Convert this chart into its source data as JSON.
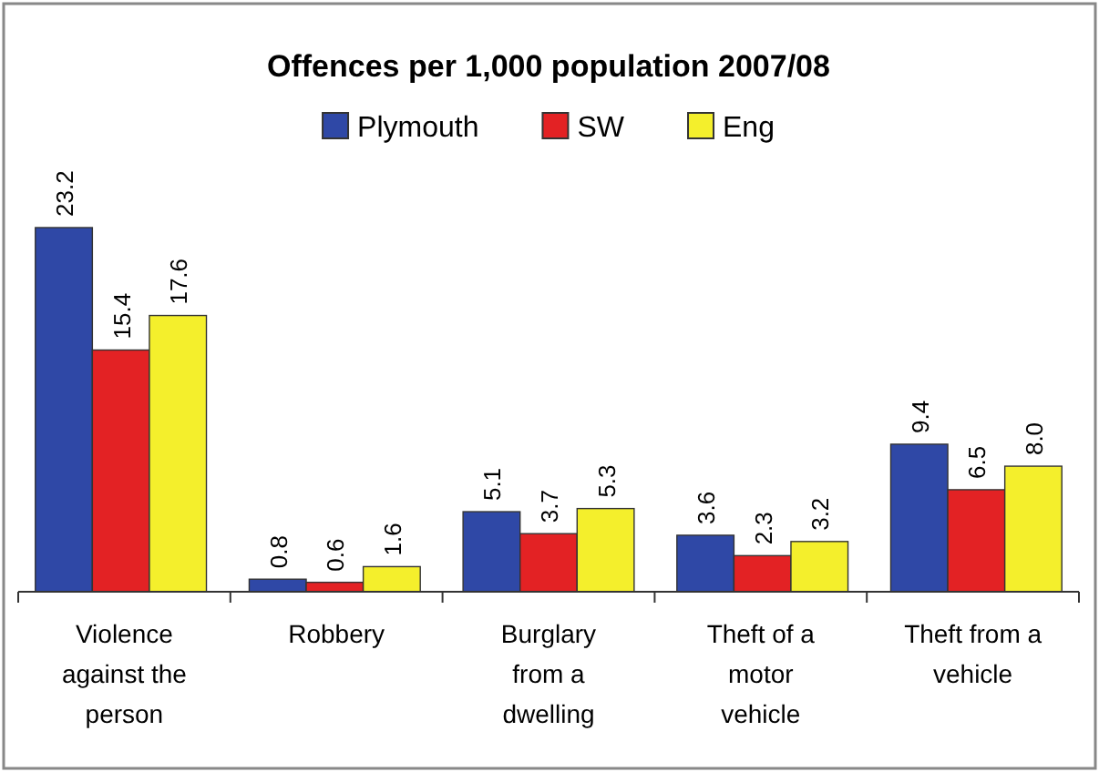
{
  "chart_data": {
    "type": "bar",
    "title": "Offences per 1,000 population 2007/08",
    "categories": [
      "Violence against the person",
      "Robbery",
      "Burglary from a dwelling",
      "Theft of a motor vehicle",
      "Theft from a vehicle"
    ],
    "series": [
      {
        "name": "Plymouth",
        "color": "#2f48a6",
        "values": [
          23.2,
          0.8,
          5.1,
          3.6,
          9.4
        ],
        "value_labels": [
          "23.2",
          "0.8",
          "5.1",
          "3.6",
          "9.4"
        ]
      },
      {
        "name": "SW",
        "color": "#e32224",
        "values": [
          15.4,
          0.6,
          3.7,
          2.3,
          6.5
        ],
        "value_labels": [
          "15.4",
          "0.6",
          "3.7",
          "2.3",
          "6.5"
        ]
      },
      {
        "name": "Eng",
        "color": "#f4ef2c",
        "values": [
          17.6,
          1.6,
          5.3,
          3.2,
          8.0
        ],
        "value_labels": [
          "17.6",
          "1.6",
          "5.3",
          "3.2",
          "8.0"
        ]
      }
    ],
    "legend": "top"
  }
}
